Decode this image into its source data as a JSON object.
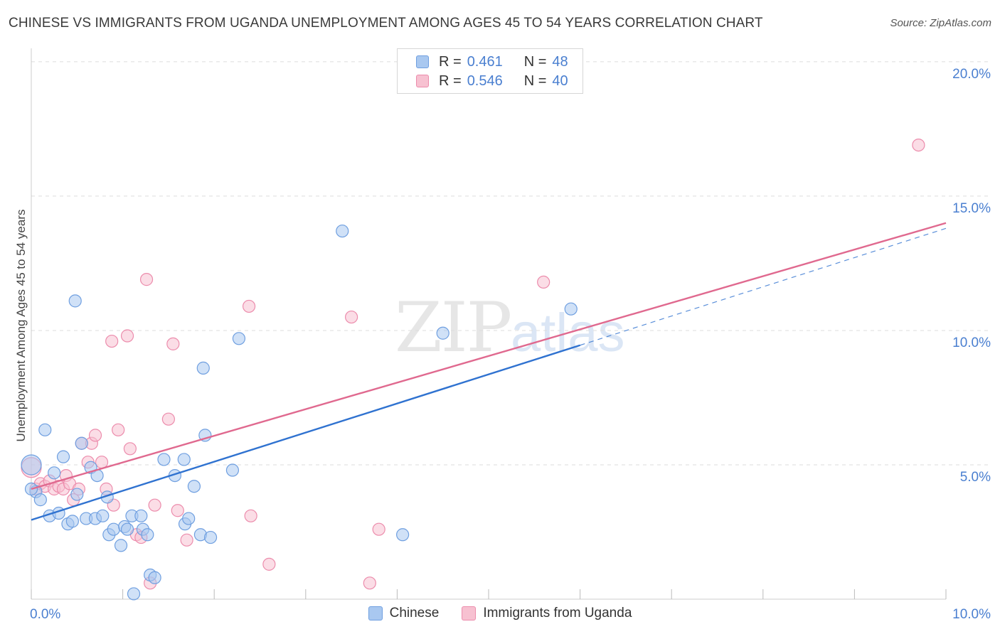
{
  "title": "CHINESE VS IMMIGRANTS FROM UGANDA UNEMPLOYMENT AMONG AGES 45 TO 54 YEARS CORRELATION CHART",
  "source": "Source: ZipAtlas.com",
  "watermark": {
    "zip": "ZIP",
    "atlas": "atlas"
  },
  "colors": {
    "chinese_fill": "#a9c8f0",
    "chinese_stroke": "#6f9fe0",
    "chinese_line": "#2f72d0",
    "uganda_fill": "#f7c1d1",
    "uganda_stroke": "#ec8cac",
    "uganda_line": "#e0698f",
    "grid": "#dcdcdc",
    "tick_label": "#4a7fd0"
  },
  "legend_top": {
    "rows": [
      {
        "r_label": "R =",
        "r_value": "0.461",
        "n_label": "N =",
        "n_value": "48"
      },
      {
        "r_label": "R =",
        "r_value": "0.546",
        "n_label": "N =",
        "n_value": "40"
      }
    ]
  },
  "legend_bottom": {
    "chinese": "Chinese",
    "uganda": "Immigrants from Uganda"
  },
  "chart_data": {
    "type": "scatter",
    "title": "CHINESE VS IMMIGRANTS FROM UGANDA UNEMPLOYMENT AMONG AGES 45 TO 54 YEARS CORRELATION CHART",
    "xlabel": "",
    "ylabel": "Unemployment Among Ages 45 to 54 years",
    "xlim": [
      0,
      10
    ],
    "ylim": [
      0,
      20.5
    ],
    "x_tick_labels": [
      {
        "value": 0,
        "label": "0.0%"
      },
      {
        "value": 10,
        "label": "10.0%"
      }
    ],
    "y_tick_labels": [
      {
        "value": 5,
        "label": "5.0%"
      },
      {
        "value": 10,
        "label": "10.0%"
      },
      {
        "value": 15,
        "label": "15.0%"
      },
      {
        "value": 20,
        "label": "20.0%"
      }
    ],
    "series": [
      {
        "name": "Chinese",
        "points": [
          [
            0.0,
            5.0
          ],
          [
            0.05,
            4.0
          ],
          [
            0.1,
            3.7
          ],
          [
            0.15,
            6.3
          ],
          [
            0.2,
            3.1
          ],
          [
            0.25,
            4.7
          ],
          [
            0.3,
            3.2
          ],
          [
            0.35,
            5.3
          ],
          [
            0.4,
            2.8
          ],
          [
            0.45,
            2.9
          ],
          [
            0.48,
            11.1
          ],
          [
            0.5,
            3.9
          ],
          [
            0.55,
            5.8
          ],
          [
            0.6,
            3.0
          ],
          [
            0.65,
            4.9
          ],
          [
            0.7,
            3.0
          ],
          [
            0.72,
            4.6
          ],
          [
            0.78,
            3.1
          ],
          [
            0.83,
            3.8
          ],
          [
            0.85,
            2.4
          ],
          [
            0.9,
            2.6
          ],
          [
            0.98,
            2.0
          ],
          [
            1.02,
            2.7
          ],
          [
            1.05,
            2.6
          ],
          [
            1.1,
            3.1
          ],
          [
            1.12,
            0.2
          ],
          [
            1.2,
            3.1
          ],
          [
            1.22,
            2.6
          ],
          [
            1.27,
            2.4
          ],
          [
            1.3,
            0.9
          ],
          [
            1.35,
            0.8
          ],
          [
            1.45,
            5.2
          ],
          [
            1.57,
            4.6
          ],
          [
            1.67,
            5.2
          ],
          [
            1.68,
            2.8
          ],
          [
            1.72,
            3.0
          ],
          [
            1.78,
            4.2
          ],
          [
            1.85,
            2.4
          ],
          [
            1.88,
            8.6
          ],
          [
            1.9,
            6.1
          ],
          [
            1.96,
            2.3
          ],
          [
            2.2,
            4.8
          ],
          [
            2.27,
            9.7
          ],
          [
            3.4,
            13.7
          ],
          [
            4.06,
            2.4
          ],
          [
            4.5,
            9.9
          ],
          [
            5.9,
            10.8
          ],
          [
            0.0,
            4.1
          ]
        ],
        "trend": {
          "x0": 0.0,
          "y0": 2.95,
          "x1": 6.0,
          "y1": 9.45,
          "dash_to_x": 10.0,
          "dash_to_y": 13.8
        }
      },
      {
        "name": "Immigrants from Uganda",
        "points": [
          [
            0.0,
            4.9
          ],
          [
            0.05,
            4.1
          ],
          [
            0.1,
            4.3
          ],
          [
            0.15,
            4.2
          ],
          [
            0.2,
            4.4
          ],
          [
            0.25,
            4.1
          ],
          [
            0.3,
            4.2
          ],
          [
            0.35,
            4.1
          ],
          [
            0.38,
            4.6
          ],
          [
            0.42,
            4.3
          ],
          [
            0.46,
            3.7
          ],
          [
            0.52,
            4.1
          ],
          [
            0.55,
            5.8
          ],
          [
            0.62,
            5.1
          ],
          [
            0.66,
            5.8
          ],
          [
            0.7,
            6.1
          ],
          [
            0.77,
            5.1
          ],
          [
            0.82,
            4.1
          ],
          [
            0.88,
            9.6
          ],
          [
            0.9,
            3.5
          ],
          [
            0.95,
            6.3
          ],
          [
            1.05,
            9.8
          ],
          [
            1.08,
            5.6
          ],
          [
            1.15,
            2.4
          ],
          [
            1.2,
            2.3
          ],
          [
            1.26,
            11.9
          ],
          [
            1.3,
            0.6
          ],
          [
            1.35,
            3.5
          ],
          [
            1.5,
            6.7
          ],
          [
            1.55,
            9.5
          ],
          [
            1.6,
            3.3
          ],
          [
            1.7,
            2.2
          ],
          [
            2.38,
            10.9
          ],
          [
            2.4,
            3.1
          ],
          [
            2.6,
            1.3
          ],
          [
            3.5,
            10.5
          ],
          [
            3.7,
            0.6
          ],
          [
            3.8,
            2.6
          ],
          [
            5.6,
            11.8
          ],
          [
            9.7,
            16.9
          ]
        ],
        "trend": {
          "x0": 0.0,
          "y0": 4.1,
          "x1": 10.0,
          "y1": 14.0
        }
      }
    ],
    "grid": true,
    "legend_position": "top-center"
  }
}
